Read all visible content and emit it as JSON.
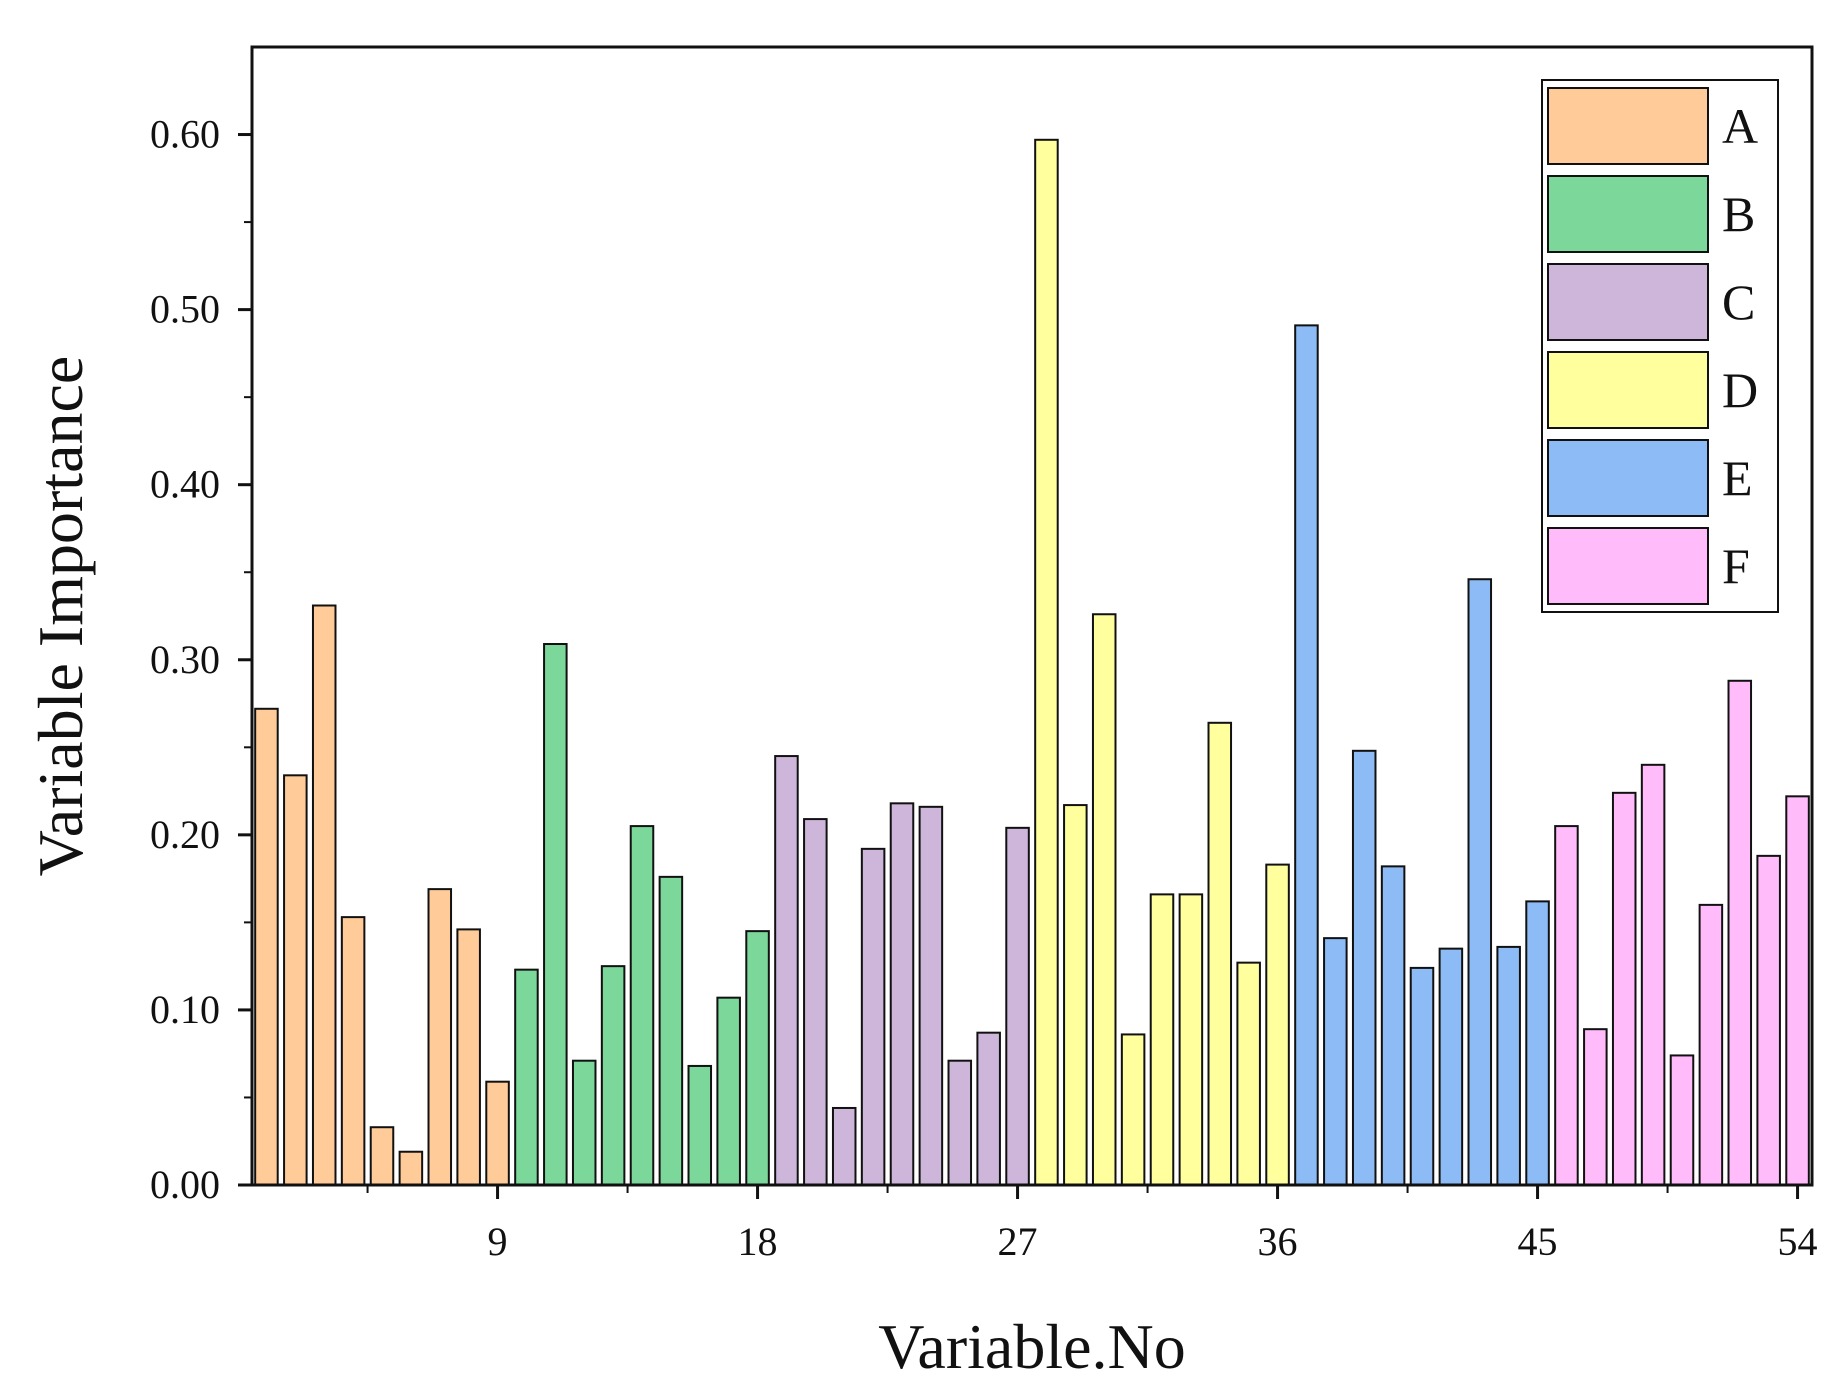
{
  "chart_data": {
    "type": "bar",
    "title": "",
    "xlabel": "Variable.No",
    "ylabel": "Variable Importance",
    "xlim": [
      0.5,
      54.5
    ],
    "ylim": [
      0,
      0.65
    ],
    "x_ticks": [
      9,
      18,
      27,
      36,
      45,
      54
    ],
    "x_tick_labels": [
      "9",
      "18",
      "27",
      "36",
      "45",
      "54"
    ],
    "y_ticks": [
      0,
      0.1,
      0.2,
      0.3,
      0.4,
      0.5,
      0.6
    ],
    "y_tick_labels": [
      "0.00",
      "0.10",
      "0.20",
      "0.30",
      "0.40",
      "0.50",
      "0.60"
    ],
    "grid": false,
    "legend_position": "top-right",
    "series": [
      {
        "name": "A",
        "color": "#FFCC99",
        "x": [
          1,
          2,
          3,
          4,
          5,
          6,
          7,
          8,
          9
        ],
        "values": [
          0.272,
          0.234,
          0.331,
          0.153,
          0.033,
          0.019,
          0.169,
          0.146,
          0.059
        ]
      },
      {
        "name": "B",
        "color": "#7CD89A",
        "x": [
          10,
          11,
          12,
          13,
          14,
          15,
          16,
          17,
          18
        ],
        "values": [
          0.123,
          0.309,
          0.071,
          0.125,
          0.205,
          0.176,
          0.068,
          0.107,
          0.145
        ]
      },
      {
        "name": "C",
        "color": "#CDB6DA",
        "x": [
          19,
          20,
          21,
          22,
          23,
          24,
          25,
          26,
          27
        ],
        "values": [
          0.245,
          0.209,
          0.044,
          0.192,
          0.218,
          0.216,
          0.071,
          0.087,
          0.204
        ]
      },
      {
        "name": "D",
        "color": "#FFFF9E",
        "x": [
          28,
          29,
          30,
          31,
          32,
          33,
          34,
          35,
          36
        ],
        "values": [
          0.597,
          0.217,
          0.326,
          0.086,
          0.166,
          0.166,
          0.264,
          0.127,
          0.183
        ]
      },
      {
        "name": "E",
        "color": "#8DBBF5",
        "x": [
          37,
          38,
          39,
          40,
          41,
          42,
          43,
          44,
          45
        ],
        "values": [
          0.491,
          0.141,
          0.248,
          0.182,
          0.124,
          0.135,
          0.346,
          0.136,
          0.162
        ]
      },
      {
        "name": "F",
        "color": "#FFBBFA",
        "x": [
          46,
          47,
          48,
          49,
          50,
          51,
          52,
          53,
          54
        ],
        "values": [
          0.205,
          0.089,
          0.224,
          0.24,
          0.074,
          0.16,
          0.288,
          0.188,
          0.222
        ]
      }
    ]
  }
}
